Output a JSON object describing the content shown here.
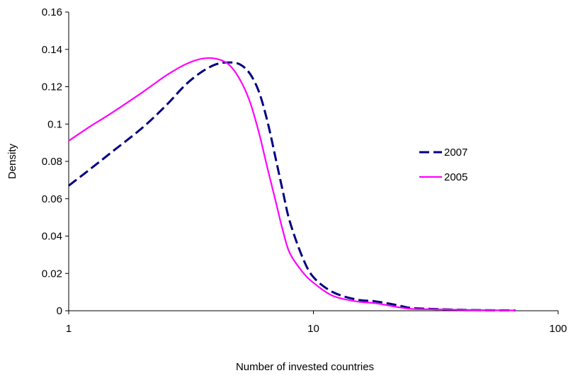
{
  "chart_data": {
    "type": "line",
    "title": "",
    "xlabel": "Number of invested countries",
    "ylabel": "Density",
    "xscale": "log",
    "xlim": [
      1,
      100
    ],
    "ylim": [
      0,
      0.16
    ],
    "x_ticks": [
      {
        "value": 1,
        "label": "1"
      },
      {
        "value": 10,
        "label": "10"
      },
      {
        "value": 100,
        "label": "100"
      }
    ],
    "y_ticks": [
      {
        "value": 0,
        "label": "0"
      },
      {
        "value": 0.02,
        "label": "0.02"
      },
      {
        "value": 0.04,
        "label": "0.04"
      },
      {
        "value": 0.06,
        "label": "0.06"
      },
      {
        "value": 0.08,
        "label": "0.08"
      },
      {
        "value": 0.1,
        "label": "0.1"
      },
      {
        "value": 0.12,
        "label": "0.12"
      },
      {
        "value": 0.14,
        "label": "0.14"
      },
      {
        "value": 0.16,
        "label": "0.16"
      }
    ],
    "grid": false,
    "legend_position": "right",
    "series": [
      {
        "name": "2007",
        "color": "#000080",
        "style": "dashed",
        "x": [
          1,
          1.2,
          1.5,
          2,
          2.5,
          3,
          3.5,
          4,
          4.5,
          5,
          5.5,
          6,
          6.5,
          7,
          7.5,
          8,
          9,
          10,
          12,
          15,
          18,
          22,
          25,
          30,
          40,
          50,
          67
        ],
        "y": [
          0.067,
          0.075,
          0.085,
          0.098,
          0.11,
          0.121,
          0.128,
          0.132,
          0.133,
          0.132,
          0.127,
          0.117,
          0.101,
          0.082,
          0.064,
          0.048,
          0.029,
          0.018,
          0.01,
          0.006,
          0.005,
          0.003,
          0.0015,
          0.001,
          0.0005,
          0.0003,
          0.0002
        ]
      },
      {
        "name": "2005",
        "color": "#ff00ff",
        "style": "solid",
        "x": [
          1,
          1.2,
          1.5,
          2,
          2.5,
          3,
          3.5,
          4,
          4.5,
          5,
          5.5,
          6,
          6.5,
          7,
          7.5,
          8,
          9,
          10,
          12,
          15,
          18,
          22,
          25,
          30,
          40,
          50,
          67
        ],
        "y": [
          0.091,
          0.098,
          0.106,
          0.117,
          0.126,
          0.132,
          0.135,
          0.135,
          0.132,
          0.124,
          0.112,
          0.095,
          0.076,
          0.059,
          0.043,
          0.031,
          0.021,
          0.015,
          0.008,
          0.005,
          0.004,
          0.002,
          0.001,
          0.0008,
          0.0005,
          0.0003,
          0.0002
        ]
      }
    ]
  }
}
